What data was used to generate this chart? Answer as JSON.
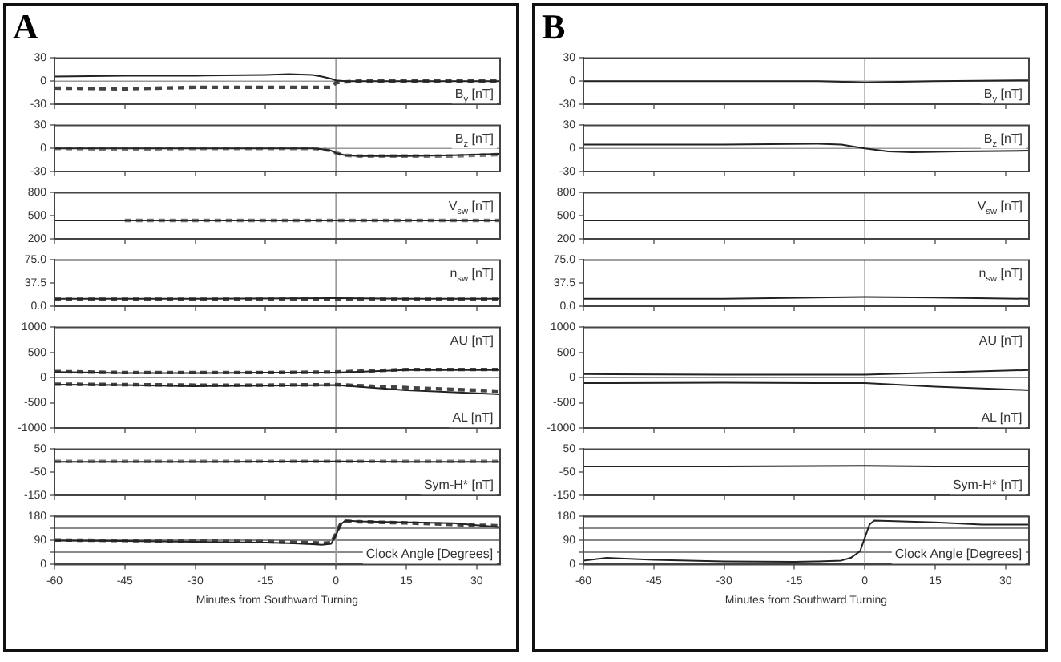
{
  "chart_data": [
    {
      "type": "line",
      "title": "A",
      "annotations": [
        "B$_{y}$ [nT]"
      ],
      "x": [
        -60,
        -45,
        -30,
        -15,
        -10,
        -5,
        -3,
        -1,
        0,
        2,
        5,
        15,
        25,
        35
      ],
      "xlim": [
        -60,
        35
      ],
      "xticks": [
        -60,
        -45,
        -30,
        -15,
        0,
        15,
        30
      ],
      "ylim": [
        -30,
        30
      ],
      "yticks": [
        -30,
        0,
        30
      ],
      "tick_labels": "y",
      "ref_lines": [
        {
          "axis": "x",
          "value": 0
        },
        {
          "axis": "y",
          "value": 0
        }
      ],
      "series": [
        {
          "color": "#222222",
          "line_style": "solid",
          "values": [
            6,
            7,
            7,
            8,
            9,
            8,
            6,
            3,
            1,
            0,
            0,
            0,
            0,
            0
          ]
        },
        {
          "color": "#444444",
          "line_style": "dashed",
          "values": [
            -9,
            -10,
            -8,
            -8,
            -8,
            -8,
            -8,
            -8,
            -2,
            -1,
            0,
            0,
            0,
            0
          ]
        }
      ]
    },
    {
      "type": "line",
      "annotations": [
        "B$_{z}$ [nT]"
      ],
      "x": [
        -60,
        -45,
        -30,
        -15,
        -10,
        -5,
        -3,
        -1,
        0,
        2,
        5,
        15,
        25,
        35
      ],
      "xlim": [
        -60,
        35
      ],
      "xticks": [
        -60,
        -45,
        -30,
        -15,
        0,
        15,
        30
      ],
      "ylim": [
        -30,
        30
      ],
      "yticks": [
        -30,
        0,
        30
      ],
      "tick_labels": "y",
      "ref_lines": [
        {
          "axis": "x",
          "value": 0
        },
        {
          "axis": "y",
          "value": 0
        }
      ],
      "series": [
        {
          "color": "#222222",
          "line_style": "solid",
          "values": [
            0,
            0,
            0,
            0,
            0,
            0,
            -1,
            -3,
            -6,
            -9,
            -10,
            -10,
            -9,
            -7
          ]
        },
        {
          "color": "#777777",
          "line_style": "dashed",
          "values": [
            0,
            -1,
            0,
            0,
            0,
            0,
            -1,
            -3,
            -6,
            -9,
            -10,
            -10,
            -10,
            -8
          ]
        }
      ]
    },
    {
      "type": "line",
      "annotations": [
        "V$_{sw}$ [nT]"
      ],
      "x": [
        -60,
        -45,
        -30,
        -15,
        0,
        15,
        35
      ],
      "xlim": [
        -60,
        35
      ],
      "xticks": [
        -60,
        -45,
        -30,
        -15,
        0,
        15,
        30
      ],
      "ylim": [
        200,
        800
      ],
      "yticks": [
        200,
        500,
        800
      ],
      "tick_labels": "y",
      "ref_lines": [
        {
          "axis": "x",
          "value": 0
        }
      ],
      "series": [
        {
          "color": "#222222",
          "line_style": "solid",
          "values": [
            440,
            440,
            440,
            440,
            440,
            440,
            440
          ]
        },
        {
          "color": "#777777",
          "line_style": "dashed",
          "values": [
            null,
            440,
            440,
            440,
            440,
            440,
            440
          ]
        }
      ]
    },
    {
      "type": "line",
      "annotations": [
        "n$_{sw}$ [nT]"
      ],
      "x": [
        -60,
        -30,
        0,
        15,
        35
      ],
      "xlim": [
        -60,
        35
      ],
      "xticks": [
        -60,
        -45,
        -30,
        -15,
        0,
        15,
        30
      ],
      "ylim": [
        0,
        75
      ],
      "yticks": [
        {
          "value": 0,
          "label": "0.0"
        },
        37.5,
        {
          "value": 75,
          "label": "75.0"
        }
      ],
      "tick_labels": "y",
      "ref_lines": [
        {
          "axis": "x",
          "value": 0
        }
      ],
      "series": [
        {
          "color": "#222222",
          "line_style": "solid",
          "values": [
            12,
            12,
            13,
            12,
            12
          ]
        },
        {
          "color": "#444444",
          "line_style": "dashed",
          "values": [
            11,
            11,
            11,
            11,
            11
          ]
        }
      ]
    },
    {
      "type": "line",
      "annotations": [
        "AU [nT]",
        "AL [nT]"
      ],
      "x": [
        -60,
        -45,
        -30,
        -15,
        0,
        15,
        35
      ],
      "xlim": [
        -60,
        35
      ],
      "xticks": [
        -60,
        -45,
        -30,
        -15,
        0,
        15,
        30
      ],
      "ylim": [
        -1000,
        1000
      ],
      "yticks": [
        -1000,
        -500,
        0,
        500,
        1000
      ],
      "tick_labels": "y",
      "ref_lines": [
        {
          "axis": "x",
          "value": 0
        },
        {
          "axis": "y",
          "value": 0
        }
      ],
      "series": [
        {
          "color": "#222222",
          "line_style": "solid",
          "values": [
            110,
            90,
            90,
            100,
            100,
            150,
            150
          ]
        },
        {
          "color": "#444444",
          "line_style": "dashed",
          "values": [
            120,
            100,
            100,
            100,
            110,
            160,
            160
          ]
        },
        {
          "color": "#222222",
          "line_style": "solid",
          "values": [
            -140,
            -150,
            -170,
            -160,
            -150,
            -250,
            -330
          ]
        },
        {
          "color": "#444444",
          "line_style": "dashed",
          "values": [
            -130,
            -140,
            -150,
            -150,
            -140,
            -200,
            -270
          ]
        }
      ]
    },
    {
      "type": "line",
      "annotations": [
        "Sym-H* [nT]"
      ],
      "x": [
        -60,
        -30,
        0,
        15,
        35
      ],
      "xlim": [
        -60,
        35
      ],
      "xticks": [
        -60,
        -45,
        -30,
        -15,
        0,
        15,
        30
      ],
      "ylim": [
        -150,
        50
      ],
      "yticks": [
        -150,
        -50,
        50
      ],
      "tick_labels": "y",
      "ref_lines": [
        {
          "axis": "x",
          "value": 0
        }
      ],
      "series": [
        {
          "color": "#222222",
          "line_style": "solid",
          "values": [
            -5,
            -5,
            -3,
            -5,
            -5
          ]
        },
        {
          "color": "#777777",
          "line_style": "dashed",
          "values": [
            -3,
            -3,
            -3,
            -3,
            -3
          ]
        }
      ]
    },
    {
      "type": "line",
      "annotations": [
        "Clock Angle [Degrees]"
      ],
      "xlabel": "Minutes from Southward Turning",
      "x": [
        -60,
        -45,
        -30,
        -15,
        -10,
        -5,
        -3,
        -1,
        0,
        1,
        2,
        5,
        15,
        25,
        35
      ],
      "xlim": [
        -60,
        35
      ],
      "xticks": [
        -60,
        -45,
        -30,
        -15,
        0,
        15,
        30
      ],
      "ylim": [
        0,
        180
      ],
      "yticks": [
        0,
        {
          "value": 45,
          "label": null
        },
        90,
        {
          "value": 135,
          "label": null
        },
        180
      ],
      "grid": "y",
      "ref_lines": [
        {
          "axis": "x",
          "value": 0
        }
      ],
      "series": [
        {
          "color": "#222222",
          "line_style": "solid",
          "values": [
            90,
            88,
            85,
            82,
            80,
            76,
            74,
            78,
            110,
            150,
            165,
            162,
            158,
            155,
            140
          ]
        },
        {
          "color": "#444444",
          "line_style": "dashed",
          "values": [
            92,
            90,
            88,
            86,
            84,
            82,
            80,
            82,
            115,
            152,
            162,
            160,
            156,
            150,
            145
          ]
        }
      ]
    },
    {
      "type": "line",
      "title": "B",
      "annotations": [
        "B$_{y}$ [nT]"
      ],
      "x": [
        -60,
        -30,
        -10,
        -3,
        0,
        5,
        15,
        35
      ],
      "xlim": [
        -60,
        35
      ],
      "xticks": [
        -60,
        -45,
        -30,
        -15,
        0,
        15,
        30
      ],
      "ylim": [
        -30,
        30
      ],
      "yticks": [
        -30,
        0,
        30
      ],
      "tick_labels": "y",
      "ref_lines": [
        {
          "axis": "x",
          "value": 0
        },
        {
          "axis": "y",
          "value": 0
        }
      ],
      "series": [
        {
          "color": "#222222",
          "line_style": "solid",
          "values": [
            0,
            0,
            0,
            -1,
            -2,
            -1,
            0,
            1
          ]
        }
      ]
    },
    {
      "type": "line",
      "annotations": [
        "B$_{z}$ [nT]"
      ],
      "x": [
        -60,
        -30,
        -10,
        -5,
        0,
        5,
        10,
        20,
        35
      ],
      "xlim": [
        -60,
        35
      ],
      "xticks": [
        -60,
        -45,
        -30,
        -15,
        0,
        15,
        30
      ],
      "ylim": [
        -30,
        30
      ],
      "yticks": [
        -30,
        0,
        30
      ],
      "tick_labels": "y",
      "ref_lines": [
        {
          "axis": "x",
          "value": 0
        },
        {
          "axis": "y",
          "value": 0
        }
      ],
      "series": [
        {
          "color": "#222222",
          "line_style": "solid",
          "values": [
            5,
            5,
            6,
            5,
            0,
            -4,
            -5,
            -4,
            -3
          ]
        }
      ]
    },
    {
      "type": "line",
      "annotations": [
        "V$_{sw}$ [nT]"
      ],
      "x": [
        -60,
        -30,
        0,
        35
      ],
      "xlim": [
        -60,
        35
      ],
      "xticks": [
        -60,
        -45,
        -30,
        -15,
        0,
        15,
        30
      ],
      "ylim": [
        200,
        800
      ],
      "yticks": [
        200,
        500,
        800
      ],
      "tick_labels": "y",
      "ref_lines": [
        {
          "axis": "x",
          "value": 0
        }
      ],
      "series": [
        {
          "color": "#222222",
          "line_style": "solid",
          "values": [
            440,
            440,
            440,
            440
          ]
        }
      ]
    },
    {
      "type": "line",
      "annotations": [
        "n$_{sw}$ [nT]"
      ],
      "x": [
        -60,
        -30,
        0,
        15,
        35
      ],
      "xlim": [
        -60,
        35
      ],
      "xticks": [
        -60,
        -45,
        -30,
        -15,
        0,
        15,
        30
      ],
      "ylim": [
        0,
        75
      ],
      "yticks": [
        {
          "value": 0,
          "label": "0.0"
        },
        37.5,
        {
          "value": 75,
          "label": "75.0"
        }
      ],
      "tick_labels": "y",
      "ref_lines": [
        {
          "axis": "x",
          "value": 0
        }
      ],
      "series": [
        {
          "color": "#222222",
          "line_style": "solid",
          "values": [
            12,
            12,
            15,
            14,
            12
          ]
        }
      ]
    },
    {
      "type": "line",
      "annotations": [
        "AU [nT]",
        "AL [nT]"
      ],
      "x": [
        -60,
        -30,
        0,
        15,
        35
      ],
      "xlim": [
        -60,
        35
      ],
      "xticks": [
        -60,
        -45,
        -30,
        -15,
        0,
        15,
        30
      ],
      "ylim": [
        -1000,
        1000
      ],
      "yticks": [
        -1000,
        -500,
        0,
        500,
        1000
      ],
      "tick_labels": "y",
      "ref_lines": [
        {
          "axis": "x",
          "value": 0
        },
        {
          "axis": "y",
          "value": 0
        }
      ],
      "series": [
        {
          "color": "#222222",
          "line_style": "solid",
          "values": [
            70,
            60,
            60,
            100,
            150
          ]
        },
        {
          "color": "#222222",
          "line_style": "solid",
          "values": [
            -110,
            -100,
            -110,
            -180,
            -250
          ]
        }
      ]
    },
    {
      "type": "line",
      "annotations": [
        "Sym-H* [nT]"
      ],
      "x": [
        -60,
        -30,
        0,
        15,
        35
      ],
      "xlim": [
        -60,
        35
      ],
      "xticks": [
        -60,
        -45,
        -30,
        -15,
        0,
        15,
        30
      ],
      "ylim": [
        -150,
        50
      ],
      "yticks": [
        -150,
        -50,
        50
      ],
      "tick_labels": "y",
      "ref_lines": [
        {
          "axis": "x",
          "value": 0
        }
      ],
      "series": [
        {
          "color": "#222222",
          "line_style": "solid",
          "values": [
            -25,
            -25,
            -22,
            -25,
            -25
          ]
        }
      ]
    },
    {
      "type": "line",
      "annotations": [
        "Clock Angle [Degrees]"
      ],
      "xlabel": "Minutes from Southward Turning",
      "x": [
        -60,
        -55,
        -45,
        -30,
        -15,
        -10,
        -5,
        -3,
        -1,
        0,
        1,
        2,
        5,
        15,
        25,
        35
      ],
      "xlim": [
        -60,
        35
      ],
      "xticks": [
        -60,
        -45,
        -30,
        -15,
        0,
        15,
        30
      ],
      "ylim": [
        0,
        180
      ],
      "yticks": [
        0,
        {
          "value": 45,
          "label": null
        },
        90,
        {
          "value": 135,
          "label": null
        },
        180
      ],
      "grid": "y",
      "ref_lines": [
        {
          "axis": "x",
          "value": 0
        }
      ],
      "series": [
        {
          "color": "#222222",
          "line_style": "solid",
          "values": [
            15,
            25,
            18,
            12,
            10,
            12,
            15,
            25,
            50,
            100,
            150,
            165,
            163,
            158,
            150,
            150
          ]
        }
      ]
    }
  ]
}
